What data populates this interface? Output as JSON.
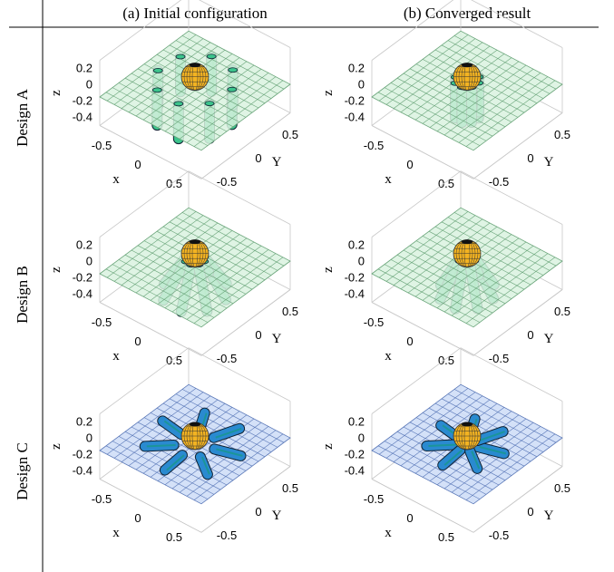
{
  "columns": [
    "(a) Initial configuration",
    "(b) Converged result"
  ],
  "rows": [
    {
      "label": "Design A",
      "plane_color": "#d9f2df",
      "grid_color": "#6aa57a",
      "cylinder_color": "#3cc48c"
    },
    {
      "label": "Design B",
      "plane_color": "#d9f2df",
      "grid_color": "#6aa57a",
      "cylinder_color": "#3cc48c"
    },
    {
      "label": "Design C",
      "plane_color": "#cddcf7",
      "grid_color": "#5a78b8",
      "cylinder_color": "#2a8ad0"
    }
  ],
  "axes": {
    "x_label": "x",
    "y_label": "Y",
    "z_label": "z",
    "x_ticks": [
      "-0.5",
      "0",
      "0.5"
    ],
    "y_ticks": [
      "-0.5",
      "0",
      "0.5"
    ],
    "z_ticks": [
      "0.2",
      "0",
      "-0.2",
      "-0.4"
    ]
  }
}
